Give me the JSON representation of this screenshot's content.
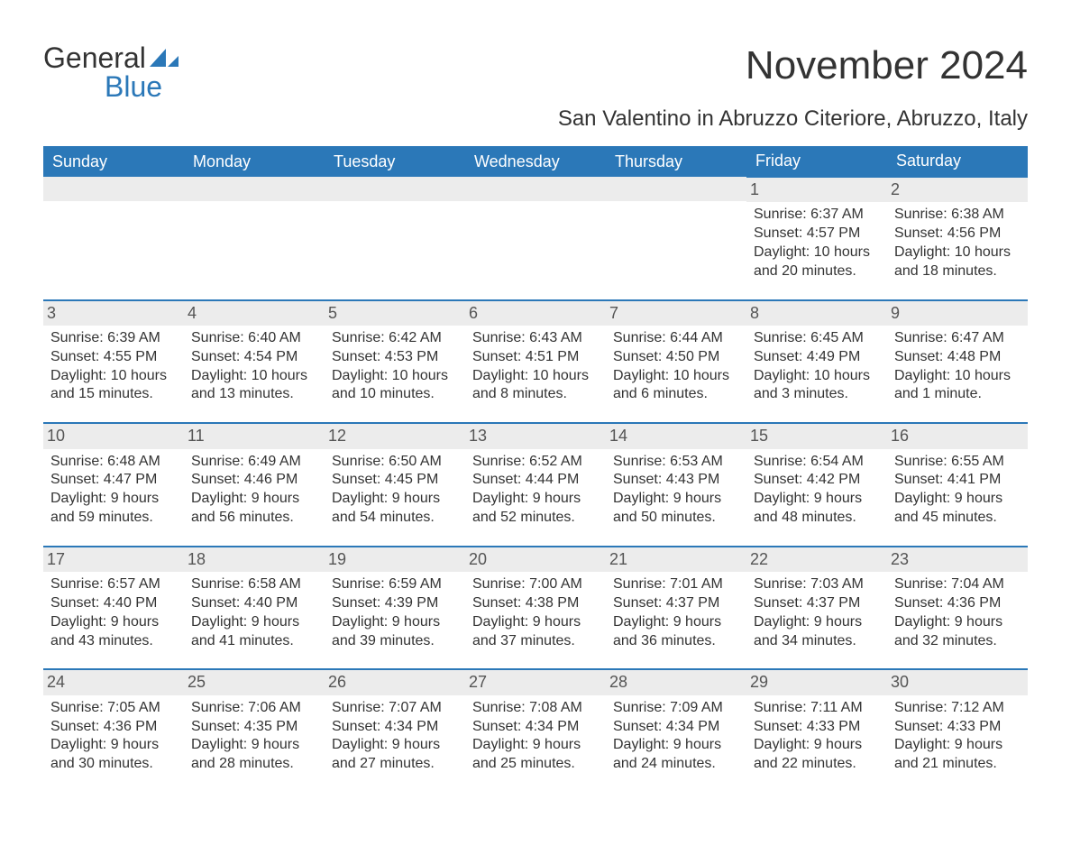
{
  "brand": {
    "general": "General",
    "blue": "Blue"
  },
  "title": "November 2024",
  "subtitle": "San Valentino in Abruzzo Citeriore, Abruzzo, Italy",
  "colors": {
    "header_bg": "#2b78b8",
    "header_text": "#ffffff",
    "cell_border_top": "#2b78b8",
    "daynum_bg": "#ececec",
    "body_text": "#333333",
    "brand_blue": "#2b78b8",
    "page_bg": "#ffffff"
  },
  "typography": {
    "title_fontsize": 44,
    "subtitle_fontsize": 24,
    "header_fontsize": 18,
    "cell_fontsize": 16,
    "font_family": "Segoe UI"
  },
  "day_headers": [
    "Sunday",
    "Monday",
    "Tuesday",
    "Wednesday",
    "Thursday",
    "Friday",
    "Saturday"
  ],
  "weeks": [
    [
      null,
      null,
      null,
      null,
      null,
      {
        "day": "1",
        "sunrise": "Sunrise: 6:37 AM",
        "sunset": "Sunset: 4:57 PM",
        "daylight1": "Daylight: 10 hours",
        "daylight2": "and 20 minutes."
      },
      {
        "day": "2",
        "sunrise": "Sunrise: 6:38 AM",
        "sunset": "Sunset: 4:56 PM",
        "daylight1": "Daylight: 10 hours",
        "daylight2": "and 18 minutes."
      }
    ],
    [
      {
        "day": "3",
        "sunrise": "Sunrise: 6:39 AM",
        "sunset": "Sunset: 4:55 PM",
        "daylight1": "Daylight: 10 hours",
        "daylight2": "and 15 minutes."
      },
      {
        "day": "4",
        "sunrise": "Sunrise: 6:40 AM",
        "sunset": "Sunset: 4:54 PM",
        "daylight1": "Daylight: 10 hours",
        "daylight2": "and 13 minutes."
      },
      {
        "day": "5",
        "sunrise": "Sunrise: 6:42 AM",
        "sunset": "Sunset: 4:53 PM",
        "daylight1": "Daylight: 10 hours",
        "daylight2": "and 10 minutes."
      },
      {
        "day": "6",
        "sunrise": "Sunrise: 6:43 AM",
        "sunset": "Sunset: 4:51 PM",
        "daylight1": "Daylight: 10 hours",
        "daylight2": "and 8 minutes."
      },
      {
        "day": "7",
        "sunrise": "Sunrise: 6:44 AM",
        "sunset": "Sunset: 4:50 PM",
        "daylight1": "Daylight: 10 hours",
        "daylight2": "and 6 minutes."
      },
      {
        "day": "8",
        "sunrise": "Sunrise: 6:45 AM",
        "sunset": "Sunset: 4:49 PM",
        "daylight1": "Daylight: 10 hours",
        "daylight2": "and 3 minutes."
      },
      {
        "day": "9",
        "sunrise": "Sunrise: 6:47 AM",
        "sunset": "Sunset: 4:48 PM",
        "daylight1": "Daylight: 10 hours",
        "daylight2": "and 1 minute."
      }
    ],
    [
      {
        "day": "10",
        "sunrise": "Sunrise: 6:48 AM",
        "sunset": "Sunset: 4:47 PM",
        "daylight1": "Daylight: 9 hours",
        "daylight2": "and 59 minutes."
      },
      {
        "day": "11",
        "sunrise": "Sunrise: 6:49 AM",
        "sunset": "Sunset: 4:46 PM",
        "daylight1": "Daylight: 9 hours",
        "daylight2": "and 56 minutes."
      },
      {
        "day": "12",
        "sunrise": "Sunrise: 6:50 AM",
        "sunset": "Sunset: 4:45 PM",
        "daylight1": "Daylight: 9 hours",
        "daylight2": "and 54 minutes."
      },
      {
        "day": "13",
        "sunrise": "Sunrise: 6:52 AM",
        "sunset": "Sunset: 4:44 PM",
        "daylight1": "Daylight: 9 hours",
        "daylight2": "and 52 minutes."
      },
      {
        "day": "14",
        "sunrise": "Sunrise: 6:53 AM",
        "sunset": "Sunset: 4:43 PM",
        "daylight1": "Daylight: 9 hours",
        "daylight2": "and 50 minutes."
      },
      {
        "day": "15",
        "sunrise": "Sunrise: 6:54 AM",
        "sunset": "Sunset: 4:42 PM",
        "daylight1": "Daylight: 9 hours",
        "daylight2": "and 48 minutes."
      },
      {
        "day": "16",
        "sunrise": "Sunrise: 6:55 AM",
        "sunset": "Sunset: 4:41 PM",
        "daylight1": "Daylight: 9 hours",
        "daylight2": "and 45 minutes."
      }
    ],
    [
      {
        "day": "17",
        "sunrise": "Sunrise: 6:57 AM",
        "sunset": "Sunset: 4:40 PM",
        "daylight1": "Daylight: 9 hours",
        "daylight2": "and 43 minutes."
      },
      {
        "day": "18",
        "sunrise": "Sunrise: 6:58 AM",
        "sunset": "Sunset: 4:40 PM",
        "daylight1": "Daylight: 9 hours",
        "daylight2": "and 41 minutes."
      },
      {
        "day": "19",
        "sunrise": "Sunrise: 6:59 AM",
        "sunset": "Sunset: 4:39 PM",
        "daylight1": "Daylight: 9 hours",
        "daylight2": "and 39 minutes."
      },
      {
        "day": "20",
        "sunrise": "Sunrise: 7:00 AM",
        "sunset": "Sunset: 4:38 PM",
        "daylight1": "Daylight: 9 hours",
        "daylight2": "and 37 minutes."
      },
      {
        "day": "21",
        "sunrise": "Sunrise: 7:01 AM",
        "sunset": "Sunset: 4:37 PM",
        "daylight1": "Daylight: 9 hours",
        "daylight2": "and 36 minutes."
      },
      {
        "day": "22",
        "sunrise": "Sunrise: 7:03 AM",
        "sunset": "Sunset: 4:37 PM",
        "daylight1": "Daylight: 9 hours",
        "daylight2": "and 34 minutes."
      },
      {
        "day": "23",
        "sunrise": "Sunrise: 7:04 AM",
        "sunset": "Sunset: 4:36 PM",
        "daylight1": "Daylight: 9 hours",
        "daylight2": "and 32 minutes."
      }
    ],
    [
      {
        "day": "24",
        "sunrise": "Sunrise: 7:05 AM",
        "sunset": "Sunset: 4:36 PM",
        "daylight1": "Daylight: 9 hours",
        "daylight2": "and 30 minutes."
      },
      {
        "day": "25",
        "sunrise": "Sunrise: 7:06 AM",
        "sunset": "Sunset: 4:35 PM",
        "daylight1": "Daylight: 9 hours",
        "daylight2": "and 28 minutes."
      },
      {
        "day": "26",
        "sunrise": "Sunrise: 7:07 AM",
        "sunset": "Sunset: 4:34 PM",
        "daylight1": "Daylight: 9 hours",
        "daylight2": "and 27 minutes."
      },
      {
        "day": "27",
        "sunrise": "Sunrise: 7:08 AM",
        "sunset": "Sunset: 4:34 PM",
        "daylight1": "Daylight: 9 hours",
        "daylight2": "and 25 minutes."
      },
      {
        "day": "28",
        "sunrise": "Sunrise: 7:09 AM",
        "sunset": "Sunset: 4:34 PM",
        "daylight1": "Daylight: 9 hours",
        "daylight2": "and 24 minutes."
      },
      {
        "day": "29",
        "sunrise": "Sunrise: 7:11 AM",
        "sunset": "Sunset: 4:33 PM",
        "daylight1": "Daylight: 9 hours",
        "daylight2": "and 22 minutes."
      },
      {
        "day": "30",
        "sunrise": "Sunrise: 7:12 AM",
        "sunset": "Sunset: 4:33 PM",
        "daylight1": "Daylight: 9 hours",
        "daylight2": "and 21 minutes."
      }
    ]
  ]
}
